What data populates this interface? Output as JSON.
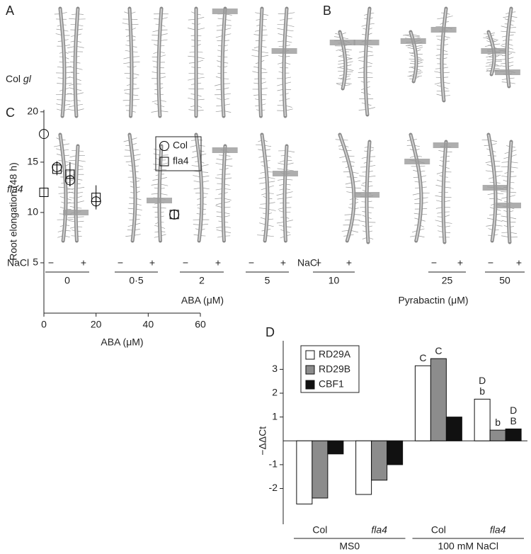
{
  "panels": {
    "A": {
      "letter": "A",
      "rows": [
        {
          "plain": "Col",
          "italic": "gl"
        },
        {
          "italic": "fla4"
        }
      ],
      "nacl": "NaCl",
      "minus": "−",
      "plus": "+",
      "doses": [
        "0",
        "0·5",
        "2",
        "5"
      ],
      "axis_label": "ABA (μM)"
    },
    "B": {
      "letter": "B",
      "nacl": "NaCl",
      "minus": "−",
      "plus": "+",
      "doses": [
        "10",
        "25",
        "50"
      ],
      "axis_label": "Pyrabactin (μM)"
    }
  },
  "chart_data": [
    {
      "type": "scatter",
      "letter": "C",
      "xlabel": "ABA (μM)",
      "ylabel": "Root elongation (48 h)",
      "xlim": [
        0,
        60
      ],
      "xticks": [
        0,
        20,
        40,
        60
      ],
      "ylim": [
        0,
        20.2
      ],
      "yticks": [
        5,
        10,
        15,
        20
      ],
      "legend": "upper right",
      "series": [
        {
          "name": "Col",
          "marker": "circle",
          "color": "#000000",
          "x": [
            0,
            5,
            10,
            20,
            50
          ],
          "values": [
            17.8,
            14.5,
            13.2,
            11.1,
            9.8
          ],
          "errors": [
            0.3,
            0.6,
            0.6,
            0.6,
            0.4
          ]
        },
        {
          "name": "fla4",
          "marker": "square",
          "color": "#000000",
          "x": [
            0,
            5,
            10,
            20,
            50
          ],
          "values": [
            12,
            14.3,
            13.8,
            11.5,
            9.8
          ],
          "errors": [
            0.3,
            0.6,
            1.2,
            1.2,
            0.4
          ]
        }
      ]
    },
    {
      "type": "bar",
      "letter": "D",
      "ylabel": "−ΔΔCt",
      "ylim": [
        -3.5,
        4.2
      ],
      "yticks": [
        -2,
        -1,
        1,
        2,
        3
      ],
      "legend": "upper left",
      "categories": [
        "Col",
        "fla4",
        "Col",
        "fla4"
      ],
      "italic": [
        false,
        true,
        false,
        true
      ],
      "groups": [
        "MS0",
        "100 mM NaCl"
      ],
      "series": [
        {
          "name": "RD29A",
          "color": "#ffffff",
          "values": [
            -2.65,
            -2.25,
            3.15,
            1.75
          ],
          "letters": [
            null,
            null,
            [
              "C"
            ],
            [
              "D",
              "b"
            ]
          ]
        },
        {
          "name": "RD29B",
          "color": "#8c8c8c",
          "values": [
            -2.4,
            -1.65,
            3.45,
            0.45
          ],
          "letters": [
            null,
            null,
            [
              "C"
            ],
            [
              "b"
            ]
          ]
        },
        {
          "name": "CBF1",
          "color": "#111111",
          "values": [
            -0.55,
            -1.0,
            1.0,
            0.5
          ],
          "letters": [
            null,
            null,
            null,
            [
              "D",
              "B"
            ]
          ]
        }
      ]
    }
  ]
}
